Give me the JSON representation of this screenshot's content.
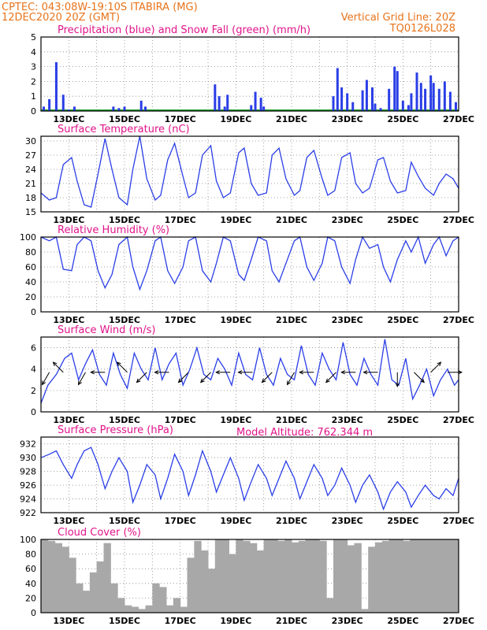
{
  "header": {
    "station": "CPTEC:   043:08W-19:10S   ITABIRA (MG)",
    "run": "12DEC2020 20Z (GMT)",
    "grid_note": "Vertical Grid Line: 20Z",
    "code": "TQ0126L028",
    "altitude": "Model Altitude: 762.344 m"
  },
  "colors": {
    "header": "#e8731a",
    "title": "#e0148a",
    "line": "#2a3ee6",
    "precip": "#2a3ee6",
    "snow": "#1fa02a",
    "cloud": "#a8a8a8"
  },
  "x_axis": {
    "labels": [
      "13DEC",
      "15DEC",
      "17DEC",
      "19DEC",
      "21DEC",
      "23DEC",
      "25DEC",
      "27DEC"
    ],
    "start": "12DEC2020 20Z",
    "end": "27DEC2020 20Z"
  },
  "chart_data": [
    {
      "type": "bar",
      "title": "Precipitation (blue) and Snow Fall (green) (mm/h)",
      "ylim": [
        0,
        5
      ],
      "yticks": [
        "0",
        "1",
        "2",
        "3",
        "4",
        "5"
      ],
      "series": [
        {
          "name": "Precipitation",
          "days": [
            0.1,
            0.3,
            0.55,
            0.8,
            1.0,
            1.2,
            2.6,
            2.8,
            3.0,
            3.6,
            3.75,
            6.25,
            6.4,
            6.6,
            6.7,
            7.55,
            7.7,
            7.9,
            8.0,
            10.5,
            10.65,
            10.8,
            11.0,
            11.2,
            11.55,
            11.7,
            11.9,
            12.0,
            12.2,
            12.5,
            12.7,
            12.8,
            13.0,
            13.2,
            13.3,
            13.5,
            13.65,
            13.8,
            14.0,
            14.1,
            14.3,
            14.5,
            14.7,
            14.9
          ],
          "values": [
            0.3,
            0.8,
            3.3,
            1.1,
            0.1,
            0.3,
            0.3,
            0.2,
            0.3,
            0.7,
            0.3,
            1.8,
            1.0,
            0.3,
            1.1,
            0.4,
            1.3,
            0.9,
            0.3,
            1.0,
            2.9,
            1.6,
            1.2,
            0.6,
            1.4,
            2.1,
            1.6,
            0.5,
            0.2,
            1.5,
            3.0,
            2.7,
            0.7,
            0.4,
            1.2,
            2.6,
            1.9,
            1.5,
            2.4,
            1.9,
            1.5,
            2.0,
            1.3,
            0.6
          ]
        }
      ]
    },
    {
      "type": "line",
      "title": "Surface Temperature (nC)",
      "ylim": [
        15,
        31
      ],
      "yticks": [
        "15",
        "18",
        "21",
        "24",
        "27",
        "30"
      ],
      "series": [
        {
          "name": "Temperature",
          "days": [
            0.0,
            0.3,
            0.55,
            0.8,
            1.1,
            1.3,
            1.55,
            1.8,
            2.05,
            2.3,
            2.55,
            2.8,
            3.1,
            3.3,
            3.55,
            3.8,
            4.1,
            4.3,
            4.55,
            4.8,
            5.1,
            5.3,
            5.55,
            5.8,
            6.1,
            6.3,
            6.55,
            6.8,
            7.1,
            7.3,
            7.55,
            7.8,
            8.1,
            8.3,
            8.55,
            8.8,
            9.1,
            9.3,
            9.55,
            9.8,
            10.1,
            10.3,
            10.55,
            10.8,
            11.1,
            11.3,
            11.55,
            11.8,
            12.1,
            12.3,
            12.55,
            12.8,
            13.1,
            13.3,
            13.55,
            13.8,
            14.1,
            14.3,
            14.55,
            14.8,
            15.0
          ],
          "values": [
            19,
            17.5,
            18,
            25,
            26.5,
            21.5,
            16.5,
            16,
            23,
            30.5,
            24,
            18,
            16.5,
            24,
            31,
            22,
            17.5,
            18.5,
            26,
            29.5,
            22.5,
            18,
            19,
            27,
            29,
            21.5,
            18,
            19,
            27.5,
            28.5,
            21,
            18.5,
            19,
            27,
            28.5,
            22,
            18.5,
            19.5,
            26.5,
            28,
            22,
            18.5,
            19.5,
            26.5,
            27.5,
            21,
            19,
            20,
            26,
            26.5,
            21.5,
            19,
            19.5,
            25.5,
            22.5,
            20,
            18.5,
            21,
            23,
            22,
            20
          ]
        }
      ]
    },
    {
      "type": "line",
      "title": "Relative Humidity (%)",
      "ylim": [
        0,
        100
      ],
      "yticks": [
        "0",
        "20",
        "40",
        "60",
        "80",
        "100"
      ],
      "series": [
        {
          "name": "Relative Humidity",
          "days": [
            0.0,
            0.3,
            0.55,
            0.8,
            1.1,
            1.3,
            1.55,
            1.8,
            2.05,
            2.3,
            2.55,
            2.8,
            3.1,
            3.3,
            3.55,
            3.8,
            4.1,
            4.3,
            4.55,
            4.8,
            5.1,
            5.3,
            5.55,
            5.8,
            6.1,
            6.3,
            6.55,
            6.8,
            7.1,
            7.3,
            7.55,
            7.8,
            8.1,
            8.3,
            8.55,
            8.8,
            9.1,
            9.3,
            9.55,
            9.8,
            10.1,
            10.3,
            10.55,
            10.8,
            11.1,
            11.3,
            11.55,
            11.8,
            12.1,
            12.3,
            12.55,
            12.8,
            13.1,
            13.3,
            13.55,
            13.8,
            14.1,
            14.3,
            14.55,
            14.8,
            15.0
          ],
          "values": [
            100,
            95,
            100,
            57,
            55,
            90,
            100,
            95,
            55,
            32,
            50,
            90,
            100,
            60,
            30,
            55,
            95,
            100,
            55,
            38,
            60,
            95,
            100,
            55,
            40,
            65,
            100,
            95,
            50,
            42,
            70,
            100,
            95,
            55,
            40,
            65,
            95,
            100,
            60,
            42,
            65,
            100,
            95,
            60,
            38,
            70,
            100,
            85,
            90,
            60,
            40,
            70,
            95,
            80,
            100,
            65,
            90,
            100,
            75,
            95,
            100
          ]
        }
      ]
    },
    {
      "type": "line",
      "title": "Surface Wind (m/s)",
      "ylim": [
        0,
        7
      ],
      "yticks": [
        "0",
        "2",
        "4",
        "6"
      ],
      "series": [
        {
          "name": "Wind speed",
          "days": [
            0.0,
            0.25,
            0.55,
            0.85,
            1.1,
            1.35,
            1.6,
            1.85,
            2.1,
            2.35,
            2.6,
            2.85,
            3.1,
            3.35,
            3.6,
            3.85,
            4.1,
            4.35,
            4.6,
            4.85,
            5.1,
            5.35,
            5.6,
            5.85,
            6.1,
            6.35,
            6.6,
            6.85,
            7.1,
            7.35,
            7.6,
            7.85,
            8.1,
            8.35,
            8.6,
            8.85,
            9.1,
            9.35,
            9.6,
            9.85,
            10.1,
            10.35,
            10.6,
            10.85,
            11.1,
            11.35,
            11.6,
            11.85,
            12.1,
            12.35,
            12.6,
            12.85,
            13.1,
            13.35,
            13.6,
            13.85,
            14.1,
            14.35,
            14.6,
            14.85,
            15.0
          ],
          "values": [
            0.8,
            2.5,
            3.5,
            5.0,
            5.5,
            3.0,
            4.5,
            5.8,
            3.5,
            2.5,
            5.5,
            3.5,
            2.2,
            5.5,
            4.0,
            3.0,
            6.0,
            3.0,
            4.5,
            5.5,
            2.5,
            4.0,
            6.0,
            3.5,
            3.0,
            5.0,
            4.0,
            2.5,
            5.5,
            3.5,
            3.0,
            6.0,
            3.5,
            2.5,
            5.0,
            3.5,
            3.0,
            6.2,
            3.5,
            2.5,
            5.5,
            4.0,
            3.0,
            6.5,
            3.5,
            2.5,
            5.0,
            3.5,
            2.5,
            6.8,
            3.0,
            2.5,
            5.0,
            1.2,
            2.5,
            4.0,
            1.5,
            3.0,
            4.0,
            2.5,
            3.0
          ]
        },
        {
          "name": "Wind direction (deg from)",
          "days": [
            0.3,
            0.8,
            1.6,
            2.3,
            3.1,
            3.8,
            4.6,
            5.3,
            6.1,
            6.8,
            7.6,
            8.3,
            9.1,
            9.8,
            10.6,
            11.3,
            12.1,
            12.8,
            13.4,
            14.0,
            14.6
          ],
          "values": [
            30,
            135,
            30,
            90,
            135,
            45,
            90,
            45,
            45,
            90,
            90,
            45,
            30,
            90,
            45,
            90,
            90,
            0,
            315,
            225,
            270
          ]
        }
      ]
    },
    {
      "type": "line",
      "title": "Surface Pressure (hPa)",
      "ylim": [
        922,
        933
      ],
      "yticks": [
        "922",
        "924",
        "926",
        "928",
        "930",
        "932"
      ],
      "series": [
        {
          "name": "Pressure",
          "days": [
            0.0,
            0.3,
            0.55,
            0.8,
            1.1,
            1.3,
            1.55,
            1.8,
            2.05,
            2.3,
            2.55,
            2.8,
            3.1,
            3.3,
            3.55,
            3.8,
            4.1,
            4.3,
            4.55,
            4.8,
            5.1,
            5.3,
            5.55,
            5.8,
            6.1,
            6.3,
            6.55,
            6.8,
            7.1,
            7.3,
            7.55,
            7.8,
            8.1,
            8.3,
            8.55,
            8.8,
            9.1,
            9.3,
            9.55,
            9.8,
            10.1,
            10.3,
            10.55,
            10.8,
            11.1,
            11.3,
            11.55,
            11.8,
            12.1,
            12.3,
            12.55,
            12.8,
            13.1,
            13.3,
            13.55,
            13.8,
            14.1,
            14.3,
            14.55,
            14.8,
            15.0
          ],
          "values": [
            930,
            930.5,
            931,
            929,
            927,
            929,
            931,
            931.5,
            929,
            925.5,
            928,
            930,
            928,
            923.5,
            926,
            929,
            927.5,
            924,
            927,
            930.5,
            928,
            924.5,
            927.5,
            931,
            928,
            925,
            927.5,
            930,
            927,
            923.8,
            926.5,
            929,
            927,
            924.5,
            927,
            929.5,
            927,
            924,
            926.5,
            929,
            927,
            924.5,
            926,
            928.5,
            926,
            923.5,
            926,
            927.5,
            925,
            922.5,
            925,
            926.5,
            925,
            922.8,
            924.5,
            926,
            924.5,
            924,
            925.5,
            924.5,
            927
          ]
        }
      ]
    },
    {
      "type": "bar",
      "title": "Cloud Cover (%)",
      "ylim": [
        0,
        100
      ],
      "yticks": [
        "0",
        "20",
        "40",
        "60",
        "80",
        "100"
      ],
      "series": [
        {
          "name": "Cloud cover",
          "days": [
            0.0,
            0.25,
            0.5,
            0.75,
            1.0,
            1.25,
            1.5,
            1.75,
            2.0,
            2.25,
            2.5,
            2.75,
            3.0,
            3.25,
            3.5,
            3.75,
            4.0,
            4.25,
            4.5,
            4.75,
            5.0,
            5.25,
            5.5,
            5.75,
            6.0,
            6.25,
            6.5,
            6.75,
            7.0,
            7.25,
            7.5,
            7.75,
            8.0,
            8.25,
            8.5,
            8.75,
            9.0,
            9.25,
            9.5,
            9.75,
            10.0,
            10.25,
            10.5,
            10.75,
            11.0,
            11.25,
            11.5,
            11.75,
            12.0,
            12.25,
            12.5,
            12.75,
            13.0,
            13.25,
            13.5,
            13.75,
            14.0,
            14.25,
            14.5,
            14.75
          ],
          "values": [
            100,
            98,
            95,
            90,
            75,
            40,
            30,
            55,
            70,
            95,
            40,
            20,
            10,
            8,
            5,
            10,
            40,
            35,
            10,
            20,
            8,
            75,
            98,
            85,
            60,
            100,
            100,
            80,
            100,
            98,
            95,
            85,
            100,
            100,
            98,
            100,
            96,
            98,
            100,
            100,
            98,
            20,
            100,
            100,
            92,
            95,
            5,
            90,
            96,
            98,
            100,
            100,
            98,
            100,
            100,
            100,
            100,
            100,
            100,
            100
          ]
        }
      ]
    }
  ]
}
